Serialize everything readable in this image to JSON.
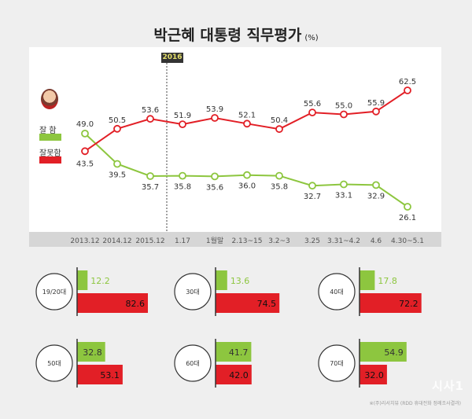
{
  "title": "박근혜 대통령 직무평가",
  "unit": "(%)",
  "badge": "2016",
  "watermark": "※(주)리서치뷰 (RDD 휴대전화 정례조사결과)",
  "logo_text": "시사1",
  "colors": {
    "good": "#8dc63f",
    "bad": "#e21f26",
    "panel": "#ffffff",
    "band": "#d6d6d6"
  },
  "chart_data": [
    {
      "type": "line",
      "categories": [
        "2013.12",
        "2014.12",
        "2015.12",
        "1.17",
        "1월말",
        "2.13~15",
        "3.2~3",
        "3.25",
        "3.31~4.2",
        "4.6",
        "4.30~5.1"
      ],
      "series": [
        {
          "name": "잘 함",
          "values": [
            49.0,
            39.5,
            35.7,
            35.8,
            35.6,
            36.0,
            35.8,
            32.7,
            33.1,
            32.9,
            26.1
          ]
        },
        {
          "name": "잘못함",
          "values": [
            43.5,
            50.5,
            53.6,
            51.9,
            53.9,
            52.1,
            50.4,
            55.6,
            55.0,
            55.9,
            62.5
          ]
        }
      ],
      "ylim": [
        20,
        66
      ]
    },
    {
      "type": "bar",
      "categories": [
        "19/20대",
        "30대",
        "40대",
        "50대",
        "60대",
        "70대"
      ],
      "series": [
        {
          "name": "잘 함",
          "values": [
            12.2,
            13.6,
            17.8,
            32.8,
            41.7,
            54.9
          ]
        },
        {
          "name": "잘못함",
          "values": [
            82.6,
            74.5,
            72.2,
            53.1,
            42.0,
            32.0
          ]
        }
      ]
    }
  ]
}
